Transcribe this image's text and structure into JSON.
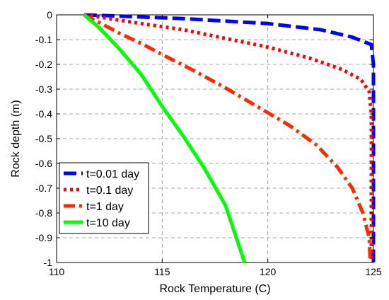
{
  "chart_data": {
    "type": "line",
    "title": "",
    "xlabel": "Rock Temperature (C)",
    "ylabel": "Rock depth (m)",
    "xlim": [
      110,
      125
    ],
    "ylim": [
      -1,
      0
    ],
    "xticks": [
      110,
      115,
      120,
      125
    ],
    "yticks": [
      0,
      -0.1,
      -0.2,
      -0.3,
      -0.4,
      -0.5,
      -0.6,
      -0.7,
      -0.8,
      -0.9,
      -1
    ],
    "grid": true,
    "legend_position": "bottom-left",
    "series": [
      {
        "name": "t=0.01 day",
        "color": "#0000ff",
        "dash": "dashed",
        "points": [
          [
            111.3,
            0
          ],
          [
            113,
            -0.005
          ],
          [
            116,
            -0.015
          ],
          [
            120,
            -0.035
          ],
          [
            122.5,
            -0.06
          ],
          [
            124,
            -0.09
          ],
          [
            124.9,
            -0.12
          ],
          [
            125,
            -0.2
          ],
          [
            125,
            -1
          ]
        ]
      },
      {
        "name": "t=0.1 day",
        "color": "#ff0000",
        "dash": "dotted",
        "points": [
          [
            111.3,
            0
          ],
          [
            112.5,
            -0.015
          ],
          [
            114,
            -0.035
          ],
          [
            116,
            -0.06
          ],
          [
            118,
            -0.095
          ],
          [
            120,
            -0.13
          ],
          [
            122,
            -0.175
          ],
          [
            123.5,
            -0.22
          ],
          [
            124.4,
            -0.26
          ],
          [
            124.8,
            -0.31
          ],
          [
            124.9,
            -0.4
          ],
          [
            124.9,
            -1
          ]
        ]
      },
      {
        "name": "t=1 day",
        "color": "#ff2a00",
        "dash": "dashdot",
        "points": [
          [
            111.3,
            0
          ],
          [
            112,
            -0.03
          ],
          [
            113,
            -0.075
          ],
          [
            114,
            -0.115
          ],
          [
            115,
            -0.16
          ],
          [
            116.5,
            -0.225
          ],
          [
            118,
            -0.295
          ],
          [
            119.5,
            -0.37
          ],
          [
            121,
            -0.445
          ],
          [
            122.3,
            -0.525
          ],
          [
            123.3,
            -0.615
          ],
          [
            124,
            -0.7
          ],
          [
            124.5,
            -0.8
          ],
          [
            124.8,
            -0.9
          ],
          [
            124.85,
            -1
          ]
        ]
      },
      {
        "name": "t=10 day",
        "color": "#00ff00",
        "dash": "solid",
        "points": [
          [
            111.3,
            0
          ],
          [
            112,
            -0.05
          ],
          [
            113,
            -0.14
          ],
          [
            114,
            -0.24
          ],
          [
            115,
            -0.37
          ],
          [
            116,
            -0.49
          ],
          [
            117,
            -0.62
          ],
          [
            118,
            -0.77
          ],
          [
            118.9,
            -1
          ]
        ]
      }
    ]
  }
}
